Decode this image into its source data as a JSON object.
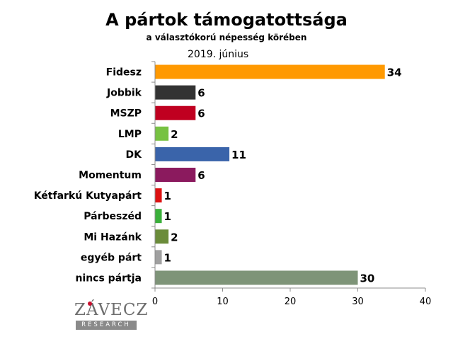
{
  "chart_data": {
    "type": "bar",
    "orientation": "horizontal",
    "title": "A pártok támogatottsága",
    "subtitle": "a választókorú népesség körében",
    "period": "2019. június",
    "categories": [
      "Fidesz",
      "Jobbik",
      "MSZP",
      "LMP",
      "DK",
      "Momentum",
      "Kétfarkú Kutyapárt",
      "Párbeszéd",
      "Mi Hazánk",
      "egyéb párt",
      "nincs pártja"
    ],
    "values": [
      34,
      6,
      6,
      2,
      11,
      6,
      1,
      1,
      2,
      1,
      30
    ],
    "colors": [
      "#ff9900",
      "#333333",
      "#c00020",
      "#77c242",
      "#3a64aa",
      "#8b1a5e",
      "#dd1111",
      "#3ab03a",
      "#6b8c3a",
      "#a0a0a0",
      "#7e9478"
    ],
    "xlim": [
      0,
      40
    ],
    "xticks": [
      0,
      10,
      20,
      30,
      40
    ],
    "grid": false,
    "legend": "none"
  },
  "logo": {
    "name": "ZÁVECZ",
    "sub": "RESEARCH"
  }
}
